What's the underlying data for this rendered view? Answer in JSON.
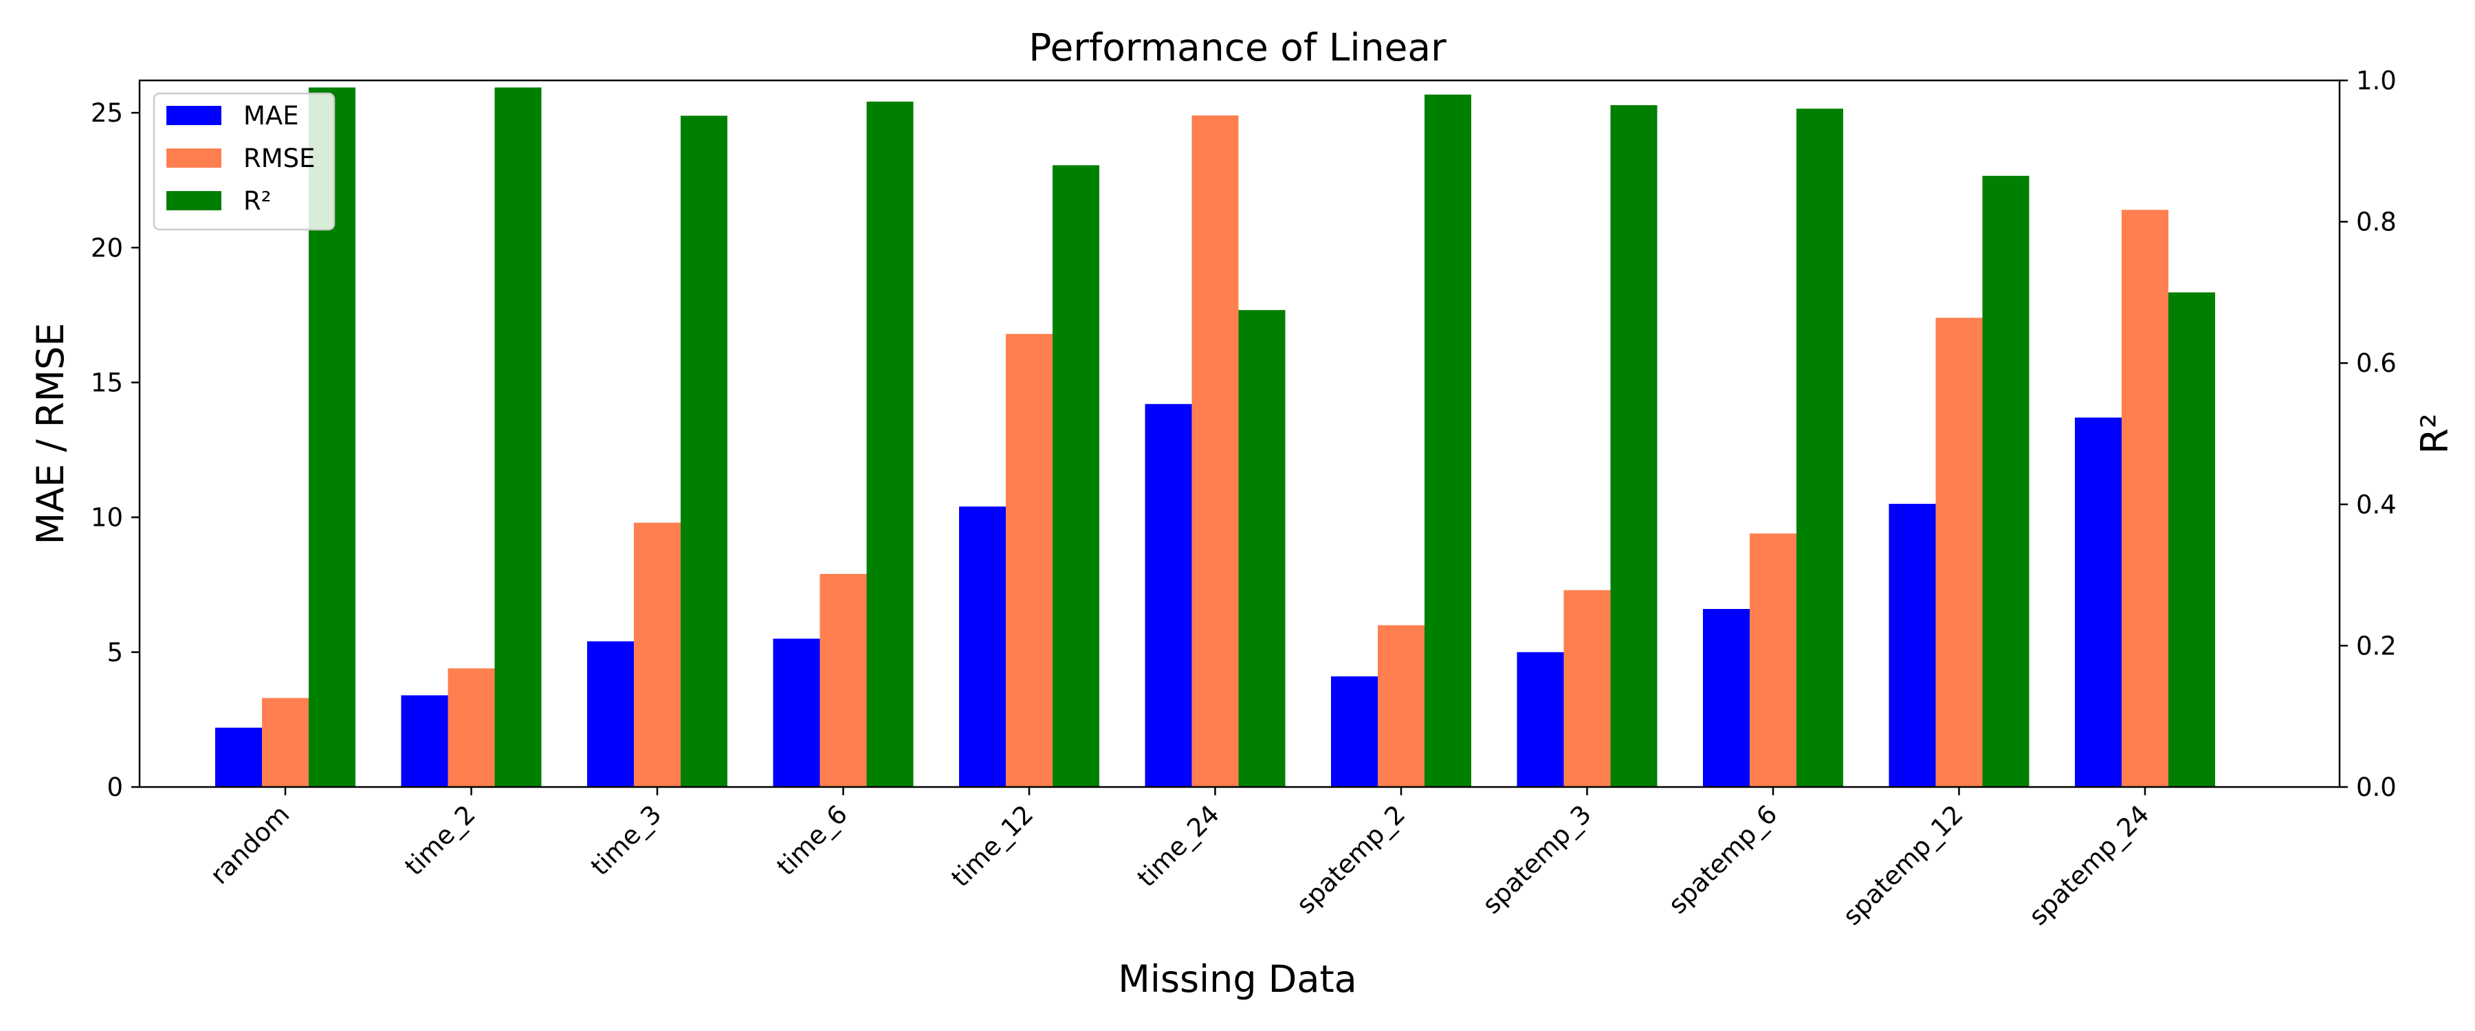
{
  "chart_data": {
    "type": "bar",
    "title": "Performance of Linear",
    "xlabel": "Missing Data",
    "ylabel": "MAE / RMSE",
    "ylabel_right": "R²",
    "categories": [
      "random",
      "time_2",
      "time_3",
      "time_6",
      "time_12",
      "time_24",
      "spatemp_2",
      "spatemp_3",
      "spatemp_6",
      "spatemp_12",
      "spatemp_24"
    ],
    "series": [
      {
        "name": "MAE",
        "axis": "left",
        "color": "#0000ff",
        "values": [
          2.2,
          3.4,
          5.4,
          5.5,
          10.4,
          14.2,
          4.1,
          5.0,
          6.6,
          10.5,
          13.7
        ]
      },
      {
        "name": "RMSE",
        "axis": "left",
        "color": "#ff7f50",
        "values": [
          3.3,
          4.4,
          9.8,
          7.9,
          16.8,
          24.9,
          6.0,
          7.3,
          9.4,
          17.4,
          21.4
        ]
      },
      {
        "name": "R²",
        "axis": "right",
        "color": "#008000",
        "values": [
          0.99,
          0.99,
          0.95,
          0.97,
          0.88,
          0.675,
          0.98,
          0.965,
          0.96,
          0.865,
          0.7
        ]
      }
    ],
    "ylim": [
      0,
      26.2
    ],
    "ylim_right": [
      0,
      1.0
    ],
    "yticks": [
      0,
      5,
      10,
      15,
      20,
      25
    ],
    "yticks_right": [
      "0.0",
      "0.2",
      "0.4",
      "0.6",
      "0.8",
      "1.0"
    ],
    "grid": false,
    "legend_position": "top-left"
  }
}
